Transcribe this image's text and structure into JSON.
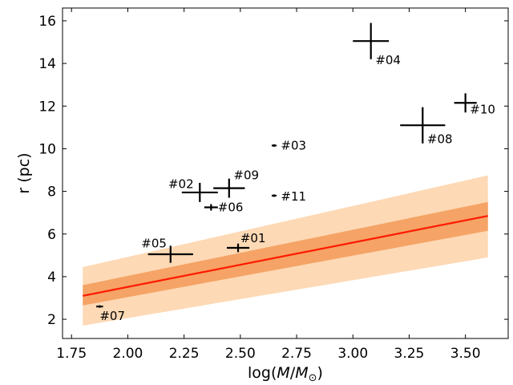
{
  "chart_data": {
    "type": "scatter",
    "title": "",
    "xlabel": "log(M/M☉)",
    "xlabel_parts": {
      "prefix": "log(",
      "var": "M",
      "slash": "/",
      "sub_var": "M",
      "sub": "⊙",
      "suffix": ")"
    },
    "ylabel": "r (pc)",
    "xlim": [
      1.71,
      3.69
    ],
    "ylim": [
      1.1,
      16.6
    ],
    "xticks": [
      1.75,
      2.0,
      2.25,
      2.5,
      2.75,
      3.0,
      3.25,
      3.5
    ],
    "xtick_labels": [
      "1.75",
      "2.00",
      "2.25",
      "2.50",
      "2.75",
      "3.00",
      "3.25",
      "3.50"
    ],
    "yticks": [
      2,
      4,
      6,
      8,
      10,
      12,
      14,
      16
    ],
    "ytick_labels": [
      "2",
      "4",
      "6",
      "8",
      "10",
      "12",
      "14",
      "16"
    ],
    "grid": false,
    "points": [
      {
        "label": "#01",
        "x": 2.49,
        "y": 5.35,
        "xerr": 0.05,
        "yerr": 0.2,
        "label_dx": 0.01,
        "label_dy": 0.45,
        "label_anchor": "start"
      },
      {
        "label": "#02",
        "x": 2.32,
        "y": 7.95,
        "xerr": 0.08,
        "yerr": 0.45,
        "label_dx": -0.14,
        "label_dy": 0.4,
        "label_anchor": "start"
      },
      {
        "label": "#03",
        "x": 2.65,
        "y": 10.15,
        "xerr": 0.01,
        "yerr": 0.05,
        "label_dx": 0.03,
        "label_dy": 0.0,
        "label_anchor": "start"
      },
      {
        "label": "#04",
        "x": 3.08,
        "y": 15.05,
        "xerr": 0.08,
        "yerr": 0.85,
        "label_dx": 0.02,
        "label_dy": -0.9,
        "label_anchor": "start"
      },
      {
        "label": "#05",
        "x": 2.19,
        "y": 5.05,
        "xerr": 0.1,
        "yerr": 0.4,
        "label_dx": -0.13,
        "label_dy": 0.5,
        "label_anchor": "start"
      },
      {
        "label": "#06",
        "x": 2.37,
        "y": 7.25,
        "xerr": 0.03,
        "yerr": 0.15,
        "label_dx": 0.03,
        "label_dy": 0.0,
        "label_anchor": "start"
      },
      {
        "label": "#07",
        "x": 1.875,
        "y": 2.6,
        "xerr": 0.015,
        "yerr": 0.03,
        "label_dx": 0.0,
        "label_dy": -0.45,
        "label_anchor": "start"
      },
      {
        "label": "#08",
        "x": 3.31,
        "y": 11.1,
        "xerr": 0.1,
        "yerr": 0.85,
        "label_dx": 0.02,
        "label_dy": -0.65,
        "label_anchor": "start"
      },
      {
        "label": "#09",
        "x": 2.45,
        "y": 8.15,
        "xerr": 0.07,
        "yerr": 0.45,
        "label_dx": 0.02,
        "label_dy": 0.6,
        "label_anchor": "start"
      },
      {
        "label": "#10",
        "x": 3.5,
        "y": 12.15,
        "xerr": 0.05,
        "yerr": 0.45,
        "label_dx": 0.02,
        "label_dy": -0.3,
        "label_anchor": "start"
      },
      {
        "label": "#11",
        "x": 2.65,
        "y": 7.8,
        "xerr": 0.01,
        "yerr": 0.05,
        "label_dx": 0.03,
        "label_dy": -0.05,
        "label_anchor": "start"
      }
    ],
    "fit_line": {
      "x": [
        1.8,
        3.6
      ],
      "y": [
        3.1,
        6.85
      ],
      "color": "#ff1a00"
    },
    "bands": [
      {
        "name": "outer",
        "x": [
          1.8,
          3.6
        ],
        "lower": [
          1.7,
          4.9
        ],
        "upper": [
          4.45,
          8.75
        ],
        "color": "#fdd9b5"
      },
      {
        "name": "inner",
        "x": [
          1.8,
          3.6
        ],
        "lower": [
          2.65,
          6.15
        ],
        "upper": [
          3.6,
          7.5
        ],
        "color": "#f5a366"
      }
    ]
  }
}
